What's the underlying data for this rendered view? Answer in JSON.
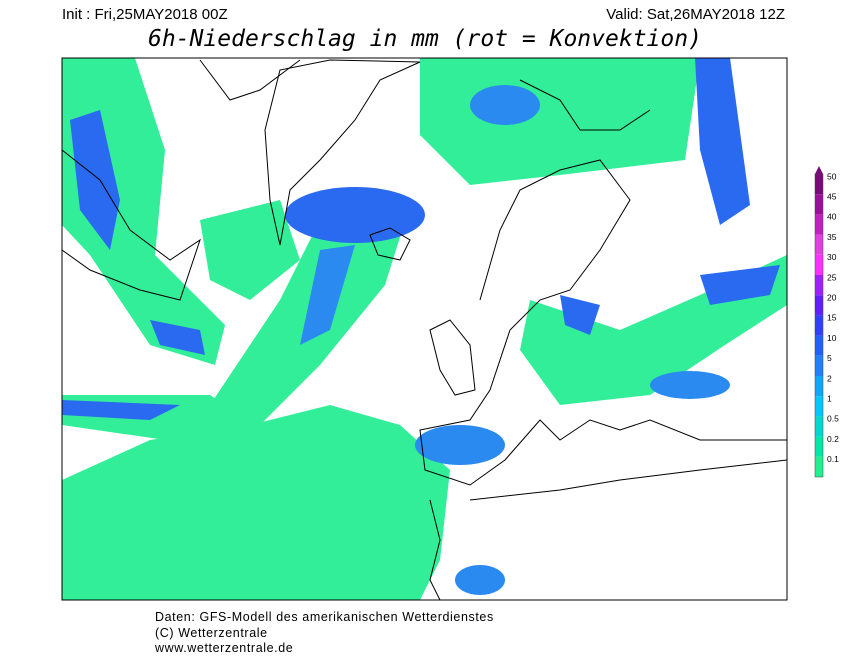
{
  "header": {
    "init": "Init : Fri,25MAY2018 00Z",
    "valid": "Valid: Sat,26MAY2018 12Z",
    "title": "6h-Niederschlag in mm (rot = Konvektion)"
  },
  "legend": {
    "labels": [
      "50",
      "45",
      "40",
      "35",
      "30",
      "25",
      "20",
      "15",
      "10",
      "5",
      "2",
      "1",
      "0.5",
      "0.2",
      "0.1"
    ],
    "colors": [
      "#7a0a7a",
      "#9a109a",
      "#c020c0",
      "#e040e0",
      "#ff30ff",
      "#a020ff",
      "#6020ff",
      "#3040ff",
      "#2060ff",
      "#2080ff",
      "#10a8ff",
      "#00c8ff",
      "#00d8d0",
      "#00e8a8",
      "#20f090"
    ]
  },
  "footer": {
    "lines": [
      "Daten: GFS-Modell des amerikanischen Wetterdienstes",
      "(C) Wetterzentrale",
      "www.wetterzentrale.de"
    ]
  }
}
